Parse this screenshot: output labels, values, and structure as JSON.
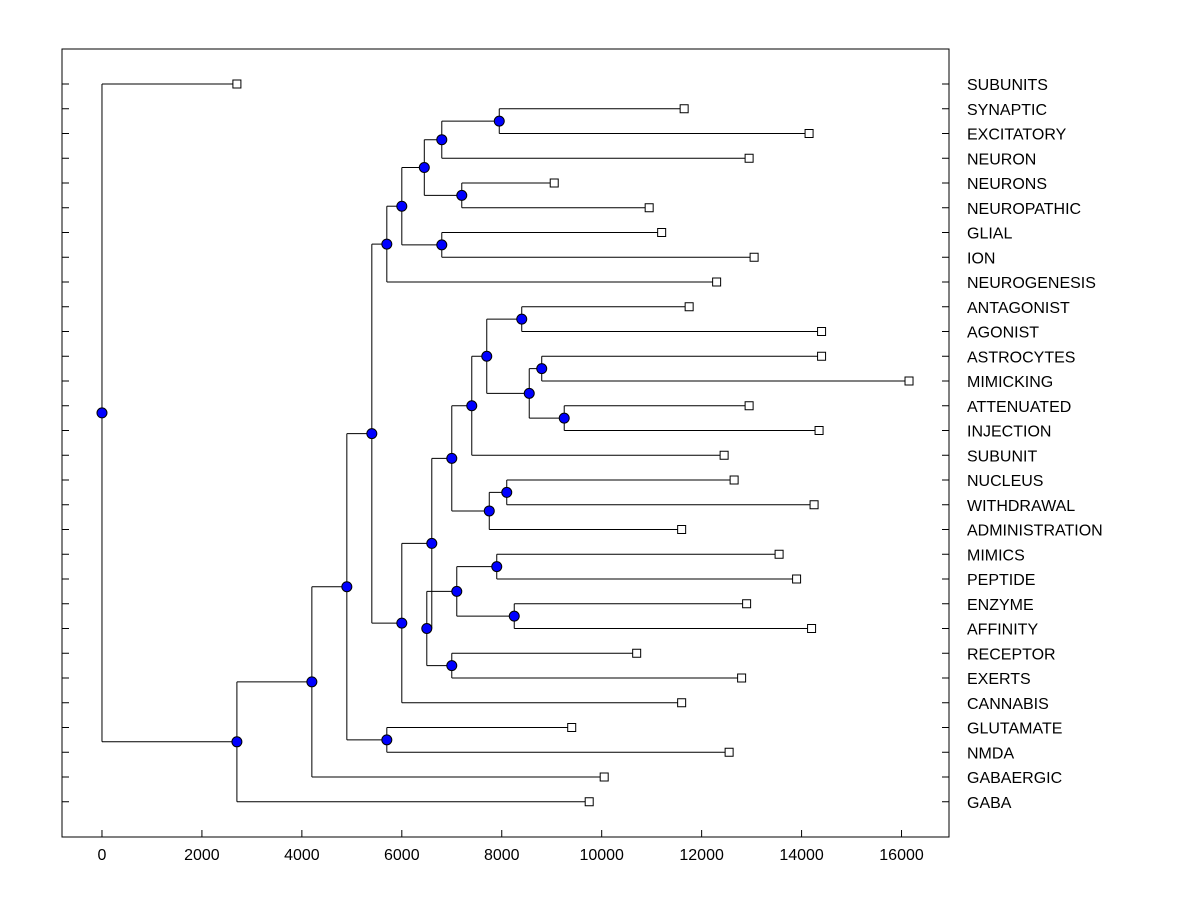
{
  "chart_data": {
    "type": "dendrogram",
    "title": "",
    "xlabel": "",
    "ylabel": "",
    "xlim": [
      -800,
      16950
    ],
    "xticks": [
      0,
      2000,
      4000,
      6000,
      8000,
      10000,
      12000,
      14000,
      16000
    ],
    "xtick_labels": [
      "0",
      "2000",
      "4000",
      "6000",
      "8000",
      "10000",
      "12000",
      "14000",
      "16000"
    ],
    "leaves": [
      {
        "label": "SUBUNITS",
        "value": 2700
      },
      {
        "label": "SYNAPTIC",
        "value": 11650
      },
      {
        "label": "EXCITATORY",
        "value": 14150
      },
      {
        "label": "NEURON",
        "value": 12950
      },
      {
        "label": "NEURONS",
        "value": 9050
      },
      {
        "label": "NEUROPATHIC",
        "value": 10950
      },
      {
        "label": "GLIAL",
        "value": 11200
      },
      {
        "label": "ION",
        "value": 13050
      },
      {
        "label": "NEUROGENESIS",
        "value": 12300
      },
      {
        "label": "ANTAGONIST",
        "value": 11750
      },
      {
        "label": "AGONIST",
        "value": 14400
      },
      {
        "label": "ASTROCYTES",
        "value": 14400
      },
      {
        "label": "MIMICKING",
        "value": 16150
      },
      {
        "label": "ATTENUATED",
        "value": 12950
      },
      {
        "label": "INJECTION",
        "value": 14350
      },
      {
        "label": "SUBUNIT",
        "value": 12450
      },
      {
        "label": "NUCLEUS",
        "value": 12650
      },
      {
        "label": "WITHDRAWAL",
        "value": 14250
      },
      {
        "label": "ADMINISTRATION",
        "value": 11600
      },
      {
        "label": "MIMICS",
        "value": 13550
      },
      {
        "label": "PEPTIDE",
        "value": 13900
      },
      {
        "label": "ENZYME",
        "value": 12900
      },
      {
        "label": "AFFINITY",
        "value": 14200
      },
      {
        "label": "RECEPTOR",
        "value": 10700
      },
      {
        "label": "EXERTS",
        "value": 12800
      },
      {
        "label": "CANNABIS",
        "value": 11600
      },
      {
        "label": "GLUTAMATE",
        "value": 9400
      },
      {
        "label": "NMDA",
        "value": 12550
      },
      {
        "label": "GABAERGIC",
        "value": 10050
      },
      {
        "label": "GABA",
        "value": 9750
      }
    ],
    "merges": [
      {
        "id": "n1",
        "value": 7950,
        "children": [
          "SYNAPTIC",
          "EXCITATORY"
        ]
      },
      {
        "id": "n2",
        "value": 6800,
        "children": [
          "n1",
          "NEURON"
        ]
      },
      {
        "id": "n3",
        "value": 7200,
        "children": [
          "NEURONS",
          "NEUROPATHIC"
        ]
      },
      {
        "id": "n4",
        "value": 6450,
        "children": [
          "n2",
          "n3"
        ]
      },
      {
        "id": "n5",
        "value": 6800,
        "children": [
          "GLIAL",
          "ION"
        ]
      },
      {
        "id": "n6",
        "value": 6000,
        "children": [
          "n4",
          "n5"
        ]
      },
      {
        "id": "n7",
        "value": 5700,
        "children": [
          "n6",
          "NEUROGENESIS"
        ]
      },
      {
        "id": "n8",
        "value": 8400,
        "children": [
          "ANTAGONIST",
          "AGONIST"
        ]
      },
      {
        "id": "n9",
        "value": 8800,
        "children": [
          "ASTROCYTES",
          "MIMICKING"
        ]
      },
      {
        "id": "n10",
        "value": 9250,
        "children": [
          "ATTENUATED",
          "INJECTION"
        ]
      },
      {
        "id": "n11",
        "value": 8550,
        "children": [
          "n9",
          "n10"
        ]
      },
      {
        "id": "n12",
        "value": 7700,
        "children": [
          "n8",
          "n11"
        ]
      },
      {
        "id": "n13",
        "value": 7400,
        "children": [
          "n12",
          "SUBUNIT"
        ]
      },
      {
        "id": "n14",
        "value": 8100,
        "children": [
          "NUCLEUS",
          "WITHDRAWAL"
        ]
      },
      {
        "id": "n15",
        "value": 7750,
        "children": [
          "n14",
          "ADMINISTRATION"
        ]
      },
      {
        "id": "n16",
        "value": 7000,
        "children": [
          "n13",
          "n15"
        ]
      },
      {
        "id": "n17",
        "value": 7900,
        "children": [
          "MIMICS",
          "PEPTIDE"
        ]
      },
      {
        "id": "n18",
        "value": 8250,
        "children": [
          "ENZYME",
          "AFFINITY"
        ]
      },
      {
        "id": "n19",
        "value": 7100,
        "children": [
          "n17",
          "n18"
        ]
      },
      {
        "id": "n20",
        "value": 7000,
        "children": [
          "RECEPTOR",
          "EXERTS"
        ]
      },
      {
        "id": "n21",
        "value": 6500,
        "children": [
          "n19",
          "n20"
        ]
      },
      {
        "id": "n22",
        "value": 6600,
        "children": [
          "n16",
          "n21"
        ]
      },
      {
        "id": "n23",
        "value": 6000,
        "children": [
          "n22",
          "CANNABIS"
        ]
      },
      {
        "id": "n24",
        "value": 5400,
        "children": [
          "n7",
          "n23"
        ]
      },
      {
        "id": "n25",
        "value": 5700,
        "children": [
          "GLUTAMATE",
          "NMDA"
        ]
      },
      {
        "id": "n26",
        "value": 4900,
        "children": [
          "n24",
          "n25"
        ]
      },
      {
        "id": "n27",
        "value": 4200,
        "children": [
          "n26",
          "GABAERGIC"
        ]
      },
      {
        "id": "n28",
        "value": 2700,
        "children": [
          "n27",
          "GABA"
        ]
      },
      {
        "id": "n29",
        "value": 0,
        "children": [
          "SUBUNITS",
          "n28"
        ]
      }
    ],
    "root": "n29",
    "node_color": "#0000ff",
    "leaf_marker": "open-square",
    "line_color": "#000000"
  }
}
